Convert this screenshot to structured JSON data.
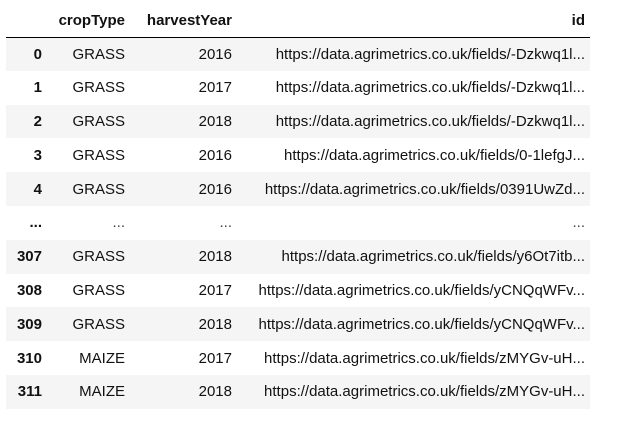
{
  "table": {
    "columns": [
      "",
      "cropType",
      "harvestYear",
      "id"
    ],
    "rows": [
      {
        "index": "0",
        "cropType": "GRASS",
        "harvestYear": "2016",
        "id": "https://data.agrimetrics.co.uk/fields/-Dzkwq1l..."
      },
      {
        "index": "1",
        "cropType": "GRASS",
        "harvestYear": "2017",
        "id": "https://data.agrimetrics.co.uk/fields/-Dzkwq1l..."
      },
      {
        "index": "2",
        "cropType": "GRASS",
        "harvestYear": "2018",
        "id": "https://data.agrimetrics.co.uk/fields/-Dzkwq1l..."
      },
      {
        "index": "3",
        "cropType": "GRASS",
        "harvestYear": "2016",
        "id": "https://data.agrimetrics.co.uk/fields/0-1lefgJ..."
      },
      {
        "index": "4",
        "cropType": "GRASS",
        "harvestYear": "2016",
        "id": "https://data.agrimetrics.co.uk/fields/0391UwZd..."
      },
      {
        "index": "...",
        "cropType": "...",
        "harvestYear": "...",
        "id": "..."
      },
      {
        "index": "307",
        "cropType": "GRASS",
        "harvestYear": "2018",
        "id": "https://data.agrimetrics.co.uk/fields/y6Ot7itb..."
      },
      {
        "index": "308",
        "cropType": "GRASS",
        "harvestYear": "2017",
        "id": "https://data.agrimetrics.co.uk/fields/yCNQqWFv..."
      },
      {
        "index": "309",
        "cropType": "GRASS",
        "harvestYear": "2018",
        "id": "https://data.agrimetrics.co.uk/fields/yCNQqWFv..."
      },
      {
        "index": "310",
        "cropType": "MAIZE",
        "harvestYear": "2017",
        "id": "https://data.agrimetrics.co.uk/fields/zMYGv-uH..."
      },
      {
        "index": "311",
        "cropType": "MAIZE",
        "harvestYear": "2018",
        "id": "https://data.agrimetrics.co.uk/fields/zMYGv-uH..."
      }
    ]
  }
}
